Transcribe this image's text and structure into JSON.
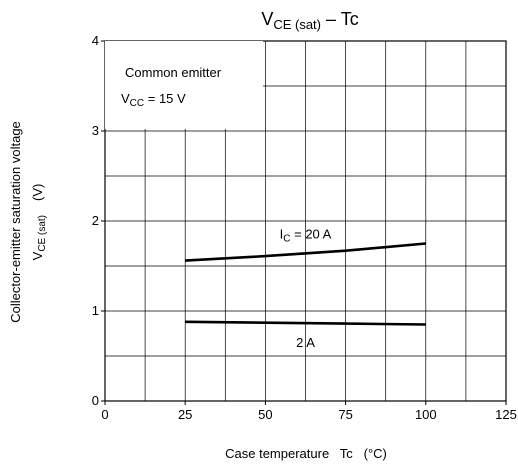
{
  "chart_data": {
    "type": "line",
    "title": {
      "main": "V",
      "sub": "CE (sat)",
      "tail": " – Tc"
    },
    "xlabel": "Case temperature   Tc   (°C)",
    "ylabel_line1": "Collector-emitter saturation voltage",
    "ylabel_line2": {
      "main": "V",
      "sub": "CE (sat)",
      "unit": "(V)"
    },
    "xlim": [
      0,
      125
    ],
    "ylim": [
      0,
      4
    ],
    "x_ticks": [
      0,
      25,
      50,
      75,
      100,
      125
    ],
    "y_ticks": [
      0,
      1,
      2,
      3,
      4
    ],
    "grid": true,
    "grid_x_step": 12.5,
    "grid_y_step": 0.5,
    "legend": {
      "line1": "Common emitter",
      "line2": {
        "main": "V",
        "sub": "CC",
        "tail": " = 15 V"
      }
    },
    "series": [
      {
        "name": "IC = 20 A",
        "label": {
          "main": "I",
          "sub": "C",
          "tail": " = 20 A"
        },
        "x": [
          25,
          50,
          75,
          100
        ],
        "y": [
          1.56,
          1.61,
          1.67,
          1.75
        ]
      },
      {
        "name": "2 A",
        "label": {
          "main": "2 A",
          "sub": "",
          "tail": ""
        },
        "x": [
          25,
          50,
          75,
          100
        ],
        "y": [
          0.88,
          0.87,
          0.86,
          0.85
        ]
      }
    ]
  }
}
